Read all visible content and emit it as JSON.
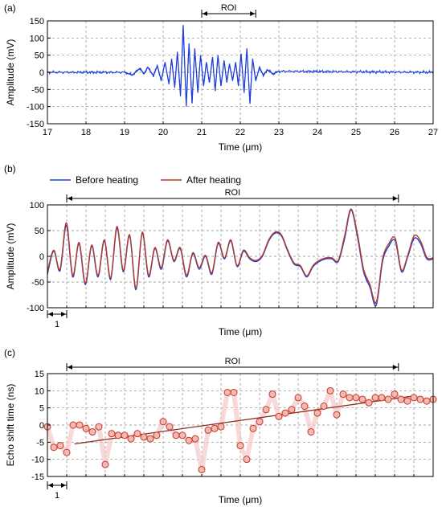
{
  "chart_data": [
    {
      "type": "line",
      "panel_label": "(a)",
      "title": "",
      "xlabel": "Time (μm)",
      "ylabel": "Amplitude (mV)",
      "xlim": [
        17,
        27
      ],
      "ylim": [
        -150,
        150
      ],
      "grid": true,
      "x_ticks": [
        "17",
        "18",
        "19",
        "20",
        "21",
        "22",
        "23",
        "24",
        "25",
        "26",
        "27"
      ],
      "y_ticks": [
        "150",
        "100",
        "50",
        "0",
        "-50",
        "-100",
        "-150"
      ],
      "roi": {
        "label": "ROI",
        "range": [
          21,
          22.4
        ]
      },
      "series": [
        {
          "color": "#1f3fd8",
          "x": [
            17.0,
            19.0,
            19.2,
            19.4,
            19.5,
            19.6,
            19.75,
            19.85,
            19.95,
            20.05,
            20.15,
            20.22,
            20.3,
            20.37,
            20.45,
            20.52,
            20.6,
            20.67,
            20.75,
            20.82,
            20.9,
            20.97,
            21.05,
            21.12,
            21.2,
            21.28,
            21.35,
            21.42,
            21.5,
            21.58,
            21.65,
            21.72,
            21.8,
            21.88,
            21.95,
            22.02,
            22.1,
            22.17,
            22.25,
            22.32,
            22.4,
            22.5,
            22.6,
            22.7,
            22.85,
            23.0,
            27.0
          ],
          "y": [
            0,
            0,
            -8,
            12,
            -5,
            15,
            -10,
            20,
            -25,
            30,
            -35,
            40,
            -45,
            60,
            -70,
            138,
            -100,
            85,
            -90,
            70,
            -60,
            50,
            -40,
            30,
            -30,
            45,
            -55,
            50,
            -40,
            35,
            -30,
            25,
            -25,
            30,
            -40,
            55,
            -60,
            70,
            -90,
            40,
            -25,
            15,
            -10,
            8,
            -5,
            3,
            0
          ],
          "noise_mV": 5
        }
      ]
    },
    {
      "type": "line",
      "panel_label": "(b)",
      "title": "",
      "xlabel": "Time (μm)",
      "ylabel": "Amplitude (mV)",
      "ylim": [
        -100,
        100
      ],
      "grid": true,
      "y_ticks": [
        "100",
        "50",
        "0",
        "-50",
        "-100"
      ],
      "x_tick_count": 21,
      "scale_bar": {
        "label": "1"
      },
      "roi": {
        "label": "ROI"
      },
      "legend": {
        "placement": "top-left"
      },
      "series": [
        {
          "name": "Before heating",
          "color": "#1f3fd8",
          "y": [
            -35,
            10,
            -28,
            60,
            -40,
            25,
            -55,
            20,
            -40,
            30,
            -45,
            55,
            -30,
            40,
            -65,
            45,
            -40,
            15,
            -25,
            30,
            -10,
            15,
            -40,
            5,
            -25,
            0,
            -35,
            25,
            -5,
            30,
            -20,
            10,
            -5,
            -10,
            0,
            30,
            45,
            40,
            10,
            -15,
            -20,
            -40,
            -20,
            -10,
            -5,
            -5,
            -10,
            35,
            90,
            40,
            -30,
            -60,
            -95,
            -10,
            20,
            30,
            -30,
            0,
            35,
            25,
            -5,
            -5
          ]
        },
        {
          "name": "After heating",
          "color": "#b13a2a",
          "y": [
            -30,
            12,
            -25,
            65,
            -37,
            27,
            -52,
            22,
            -37,
            32,
            -42,
            58,
            -28,
            42,
            -62,
            47,
            -37,
            17,
            -22,
            32,
            -8,
            17,
            -37,
            7,
            -22,
            2,
            -32,
            27,
            -3,
            32,
            -18,
            12,
            -3,
            -8,
            2,
            32,
            47,
            42,
            12,
            -13,
            -18,
            -38,
            -18,
            -8,
            -3,
            -3,
            -8,
            40,
            92,
            45,
            -25,
            -55,
            -90,
            -5,
            25,
            35,
            -27,
            3,
            40,
            30,
            -2,
            -3
          ]
        }
      ]
    },
    {
      "type": "scatter",
      "panel_label": "(c)",
      "title": "",
      "xlabel": "Time (μm)",
      "ylabel": "Echo shift time (ns)",
      "ylim": [
        -15,
        15
      ],
      "grid": true,
      "y_ticks": [
        "15",
        "10",
        "5",
        "0",
        "-5",
        "-10",
        "-15"
      ],
      "x_tick_count": 21,
      "scale_bar": {
        "label": "1"
      },
      "roi": {
        "label": "ROI"
      },
      "points": [
        -0.5,
        -6.5,
        -6,
        -8,
        0,
        0,
        -1,
        -2,
        -0.5,
        -11.5,
        -2.5,
        -3,
        -3,
        -4,
        -2.5,
        -3.5,
        -4,
        -3,
        1,
        -0.5,
        -3,
        -3,
        -4.5,
        -4,
        -13,
        -1.5,
        -1,
        -0.5,
        9.5,
        9.5,
        -6,
        -10,
        -1,
        1,
        4.5,
        9,
        2.5,
        3.5,
        4.5,
        8,
        5.5,
        -2,
        3.5,
        5.5,
        10,
        3,
        9,
        8,
        8,
        7.5,
        6.5,
        8,
        8,
        7.5,
        9,
        7.5,
        7,
        8,
        7.5,
        7,
        7.5
      ],
      "trendline": {
        "color": "#8b3020",
        "start_y": -5.5,
        "end_y": 8.5
      }
    }
  ]
}
